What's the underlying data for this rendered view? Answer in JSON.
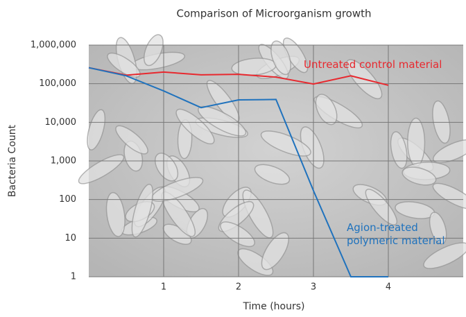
{
  "chart_data": {
    "type": "line",
    "title": "Comparison of Microorganism growth",
    "x_label": "Time (hours)",
    "y_label": "Bacteria Count",
    "yscale": "log",
    "grid": true,
    "xlim": [
      0,
      5
    ],
    "xticks": [
      1,
      2,
      3,
      4
    ],
    "ylim": [
      1,
      1000000
    ],
    "yticks": [
      1,
      10,
      100,
      {
        "value": 1000,
        "label": "1,000"
      },
      {
        "value": 10000,
        "label": "10,000"
      },
      {
        "value": 100000,
        "label": "100,000"
      },
      {
        "value": 1000000,
        "label": "1,000,000"
      }
    ],
    "x": [
      0,
      0.5,
      1,
      1.5,
      2,
      2.5,
      3,
      3.5,
      4
    ],
    "series": [
      {
        "name": "Untreated control material",
        "color": "#e8282e",
        "values": [
          260000,
          166000,
          200000,
          170000,
          175000,
          148000,
          98000,
          160000,
          91000
        ]
      },
      {
        "name": "Agion-treated polymeric material",
        "color": "#1f72bd",
        "values": [
          260000,
          160000,
          65000,
          24000,
          38000,
          39000,
          170,
          1,
          1
        ]
      }
    ]
  }
}
